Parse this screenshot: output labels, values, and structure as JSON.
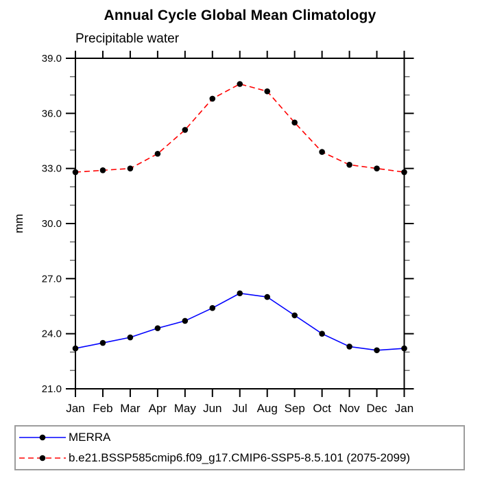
{
  "page": {
    "background": "#ffffff"
  },
  "chart_data": {
    "type": "line",
    "title": "Annual Cycle Global Mean Climatology",
    "subtitle": "Precipitable water",
    "xlabel": "",
    "ylabel": "mm",
    "categories": [
      "Jan",
      "Feb",
      "Mar",
      "Apr",
      "May",
      "Jun",
      "Jul",
      "Aug",
      "Sep",
      "Oct",
      "Nov",
      "Dec",
      "Jan"
    ],
    "ylim": [
      21.0,
      39.0
    ],
    "yticks": {
      "major_values": [
        21,
        24,
        27,
        30,
        33,
        36,
        39
      ],
      "major_labels": [
        "21.0",
        "24.0",
        "27.0",
        "30.0",
        "33.0",
        "36.0",
        "39.0"
      ],
      "minor_step": 1.0
    },
    "grid": false,
    "axis_color": "#000000",
    "legend": {
      "position": "bottom-left-box",
      "border_color": "#9c9c9c"
    },
    "series": [
      {
        "name": "MERRA",
        "color": "#0000ff",
        "line_style": "solid",
        "marker": "filled-circle",
        "marker_color": "#000000",
        "values": [
          23.2,
          23.5,
          23.8,
          24.3,
          24.7,
          25.4,
          26.2,
          26.0,
          25.0,
          24.0,
          23.3,
          23.1,
          23.2
        ]
      },
      {
        "name": "b.e21.BSSP585cmip6.f09_g17.CMIP6-SSP5-8.5.101 (2075-2099)",
        "color": "#ff0000",
        "line_style": "dashed",
        "marker": "filled-circle",
        "marker_color": "#000000",
        "values": [
          32.8,
          32.9,
          33.0,
          33.8,
          35.1,
          36.8,
          37.6,
          37.2,
          35.5,
          33.9,
          33.2,
          33.0,
          32.8
        ]
      }
    ]
  }
}
